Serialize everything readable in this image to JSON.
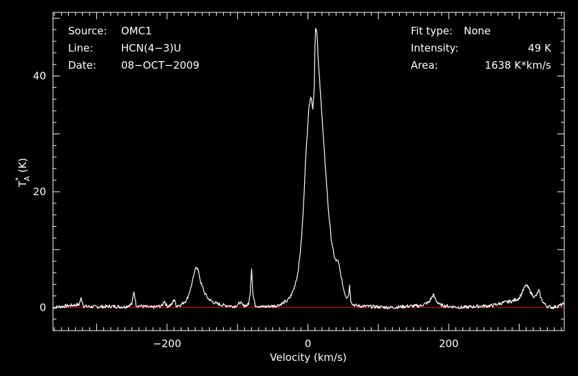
{
  "chart_data": {
    "type": "line",
    "xlabel": "Velocity (km/s)",
    "ylabel": {
      "base": "T",
      "sup": "*",
      "sub": "A",
      "unit": " (K)"
    },
    "xlim": [
      -362,
      364
    ],
    "ylim": [
      -4,
      51
    ],
    "x_ticks": [
      -200,
      0,
      200
    ],
    "y_ticks": [
      0,
      20,
      40
    ],
    "x_tick_labels": [
      "−200",
      "0",
      "200"
    ],
    "y_tick_labels": [
      "0",
      "20",
      "40"
    ],
    "baseline": {
      "y": 0,
      "color": "#d40000"
    },
    "background": "#000000",
    "foreground": "#ffffff",
    "info_left": [
      {
        "key": "Source:",
        "value": "OMC1"
      },
      {
        "key": "Line:",
        "value": "HCN(4−3)U"
      },
      {
        "key": "Date:",
        "value": "08−OCT−2009"
      }
    ],
    "info_right": [
      {
        "key": "Fit type:",
        "value": "None"
      },
      {
        "key": "Intensity:",
        "value": "49 K"
      },
      {
        "key": "Area:",
        "value": "1638 K*km/s"
      }
    ],
    "series": [
      {
        "x": [
          -362,
          -340,
          -325,
          -322,
          -318,
          -300,
          -280,
          -260,
          -250,
          -247,
          -244,
          -235,
          -222,
          -207,
          -204,
          -200,
          -193,
          -190,
          -187,
          -180,
          -172,
          -166,
          -162,
          -159,
          -156,
          -152,
          -147,
          -142,
          -136,
          -128,
          -120,
          -112,
          -105,
          -100,
          -96,
          -92,
          -86,
          -84,
          -82,
          -80,
          -78,
          -75,
          -65,
          -55,
          -45,
          -38,
          -30,
          -25,
          -20,
          -15,
          -12,
          -9,
          -6,
          -4,
          -1,
          1,
          3,
          4,
          5,
          6,
          7,
          9,
          10,
          11,
          13,
          15,
          18,
          21,
          25,
          29,
          33,
          37,
          40,
          42,
          44,
          47,
          50,
          53,
          55,
          58,
          59,
          61,
          64,
          70,
          80,
          100,
          120,
          140,
          160,
          172,
          178,
          182,
          188,
          200,
          220,
          240,
          260,
          270,
          280,
          290,
          300,
          305,
          310,
          314,
          318,
          322,
          325,
          328,
          331,
          335,
          340,
          348,
          356,
          364
        ],
        "y": [
          0,
          0.3,
          0.5,
          1.6,
          0.2,
          0.1,
          0.2,
          0.1,
          0.6,
          2.8,
          0.4,
          0.2,
          0,
          0.3,
          1.2,
          0.2,
          0.5,
          1.5,
          0.3,
          0.5,
          1.3,
          3.5,
          5.5,
          7.2,
          6.5,
          4.3,
          2.6,
          1.6,
          1,
          0.6,
          0.4,
          0.3,
          0.2,
          0.4,
          0.9,
          0.3,
          0.4,
          0.7,
          2.5,
          6.8,
          2.2,
          0.4,
          0.1,
          0.2,
          0.3,
          0.6,
          1.1,
          1.8,
          3.2,
          5.5,
          8.2,
          12,
          18,
          24,
          30,
          34,
          36,
          36.5,
          36,
          35,
          34.5,
          38,
          45,
          48.5,
          47,
          42,
          37,
          31,
          24,
          17,
          12,
          9,
          8,
          8.2,
          7.4,
          5.5,
          3.5,
          2.2,
          1.8,
          2.2,
          4,
          1.2,
          0.5,
          0.3,
          0.2,
          0.1,
          0,
          0.2,
          0.3,
          0.9,
          2.2,
          1.2,
          0.4,
          0.2,
          0,
          0.2,
          0.3,
          0.6,
          0.9,
          1.1,
          1.6,
          2.8,
          3.9,
          3.2,
          2.3,
          1.8,
          2.2,
          3,
          1.6,
          0.7,
          0.2,
          0,
          0.3,
          0.6
        ]
      }
    ]
  }
}
